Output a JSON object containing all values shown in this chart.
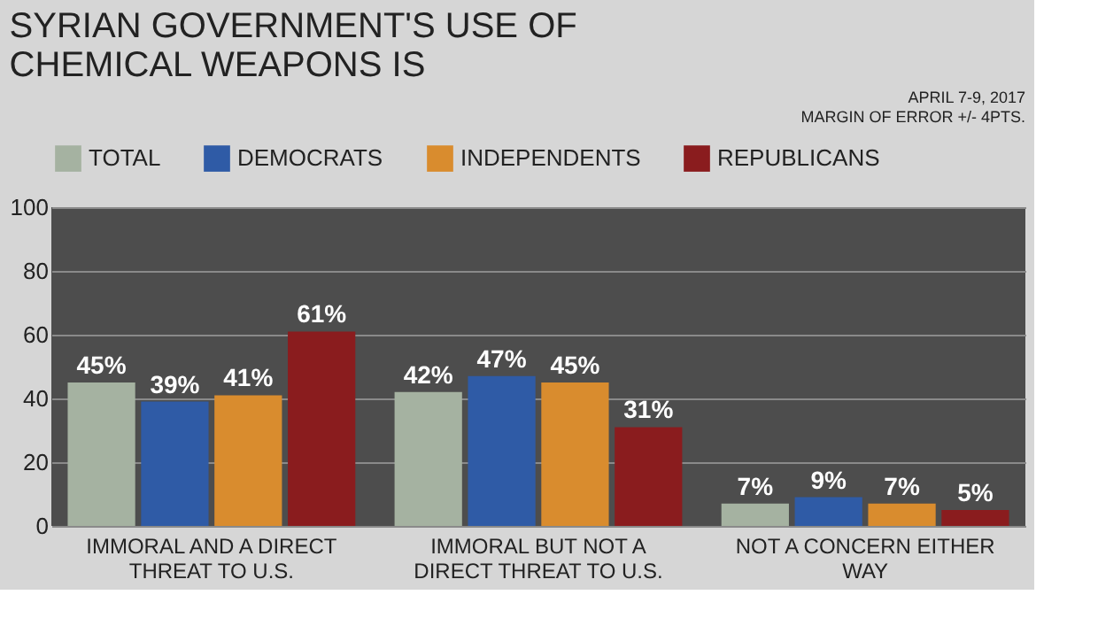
{
  "chart_data": {
    "type": "bar",
    "title": "SYRIAN GOVERNMENT'S USE OF CHEMICAL WEAPONS IS",
    "annotations": [
      "APRIL 7-9, 2017",
      "MARGIN OF ERROR +/- 4PTS."
    ],
    "categories": [
      "IMMORAL AND A DIRECT THREAT TO U.S.",
      "IMMORAL BUT NOT A DIRECT THREAT TO U.S.",
      "NOT A CONCERN EITHER WAY"
    ],
    "series": [
      {
        "name": "TOTAL",
        "color": "#a5b2a1",
        "values": [
          45,
          42,
          7
        ],
        "value_labels": [
          "45%",
          "42%",
          "7%"
        ]
      },
      {
        "name": "DEMOCRATS",
        "color": "#2f5ba6",
        "values": [
          39,
          47,
          9
        ],
        "value_labels": [
          "39%",
          "47%",
          "9%"
        ]
      },
      {
        "name": "INDEPENDENTS",
        "color": "#d98c2e",
        "values": [
          41,
          45,
          7
        ],
        "value_labels": [
          "41%",
          "45%",
          "7%"
        ]
      },
      {
        "name": "REPUBLICANS",
        "color": "#8a1c1e",
        "values": [
          61,
          31,
          5
        ],
        "value_labels": [
          "61%",
          "31%",
          "5%"
        ]
      }
    ],
    "ylim": [
      0,
      100
    ],
    "yticks": [
      0,
      20,
      40,
      60,
      80,
      100
    ],
    "grid": "y",
    "legend": "top left"
  }
}
